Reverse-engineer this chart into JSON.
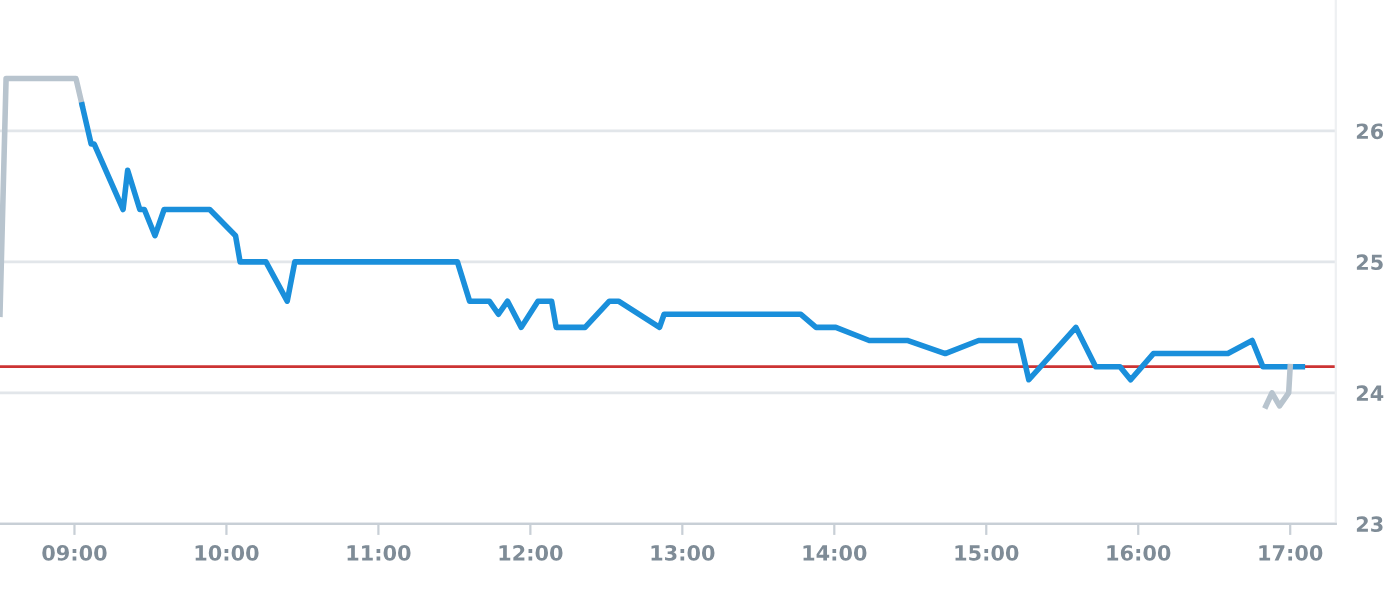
{
  "chart_data": {
    "type": "line",
    "xlim": [
      8.51,
      17.3
    ],
    "ylim": [
      23,
      27
    ],
    "xticks": [
      {
        "value": 9,
        "label": "09:00"
      },
      {
        "value": 10,
        "label": "10:00"
      },
      {
        "value": 11,
        "label": "11:00"
      },
      {
        "value": 12,
        "label": "12:00"
      },
      {
        "value": 13,
        "label": "13:00"
      },
      {
        "value": 14,
        "label": "14:00"
      },
      {
        "value": 15,
        "label": "15:00"
      },
      {
        "value": 16,
        "label": "16:00"
      },
      {
        "value": 17,
        "label": "17:00"
      }
    ],
    "yticks": [
      23,
      24,
      25,
      26
    ],
    "grid": "y",
    "marker": "none",
    "line_style": "solid",
    "ref_lines": [
      {
        "axis": "y",
        "value": 24.2,
        "label": null,
        "color": "#cc3333"
      }
    ],
    "series": [
      {
        "color": "#b8c4ce",
        "x": [
          8.51,
          8.55,
          9.01,
          9.05
        ],
        "values": [
          24.6,
          26.4,
          26.4,
          26.2
        ]
      },
      {
        "color": "#1a8fdb",
        "x": [
          9.05,
          9.11,
          9.13,
          9.32,
          9.35,
          9.43,
          9.46,
          9.53,
          9.59,
          9.89,
          10.06,
          10.09,
          10.26,
          10.4,
          10.45,
          11.52,
          11.6,
          11.73,
          11.79,
          11.85,
          11.94,
          12.05,
          12.14,
          12.17,
          12.36,
          12.52,
          12.58,
          12.85,
          12.88,
          13.78,
          13.88,
          14.01,
          14.23,
          14.48,
          14.73,
          14.95,
          15.22,
          15.28,
          15.59,
          15.72,
          15.88,
          15.95,
          16.1,
          16.59,
          16.75,
          16.82,
          17.08
        ],
        "values": [
          26.2,
          25.9,
          25.9,
          25.4,
          25.7,
          25.4,
          25.4,
          25.2,
          25.4,
          25.4,
          25.2,
          25.0,
          25.0,
          24.7,
          25.0,
          25.0,
          24.7,
          24.7,
          24.6,
          24.7,
          24.5,
          24.7,
          24.7,
          24.5,
          24.5,
          24.7,
          24.7,
          24.5,
          24.6,
          24.6,
          24.5,
          24.5,
          24.4,
          24.4,
          24.3,
          24.4,
          24.4,
          24.1,
          24.5,
          24.2,
          24.2,
          24.1,
          24.3,
          24.3,
          24.4,
          24.2,
          24.2
        ]
      },
      {
        "color": "#b8c4ce",
        "x": [
          16.84,
          16.88,
          16.93,
          16.99,
          17.0
        ],
        "values": [
          23.9,
          24.0,
          23.9,
          24.0,
          24.2
        ]
      }
    ]
  }
}
